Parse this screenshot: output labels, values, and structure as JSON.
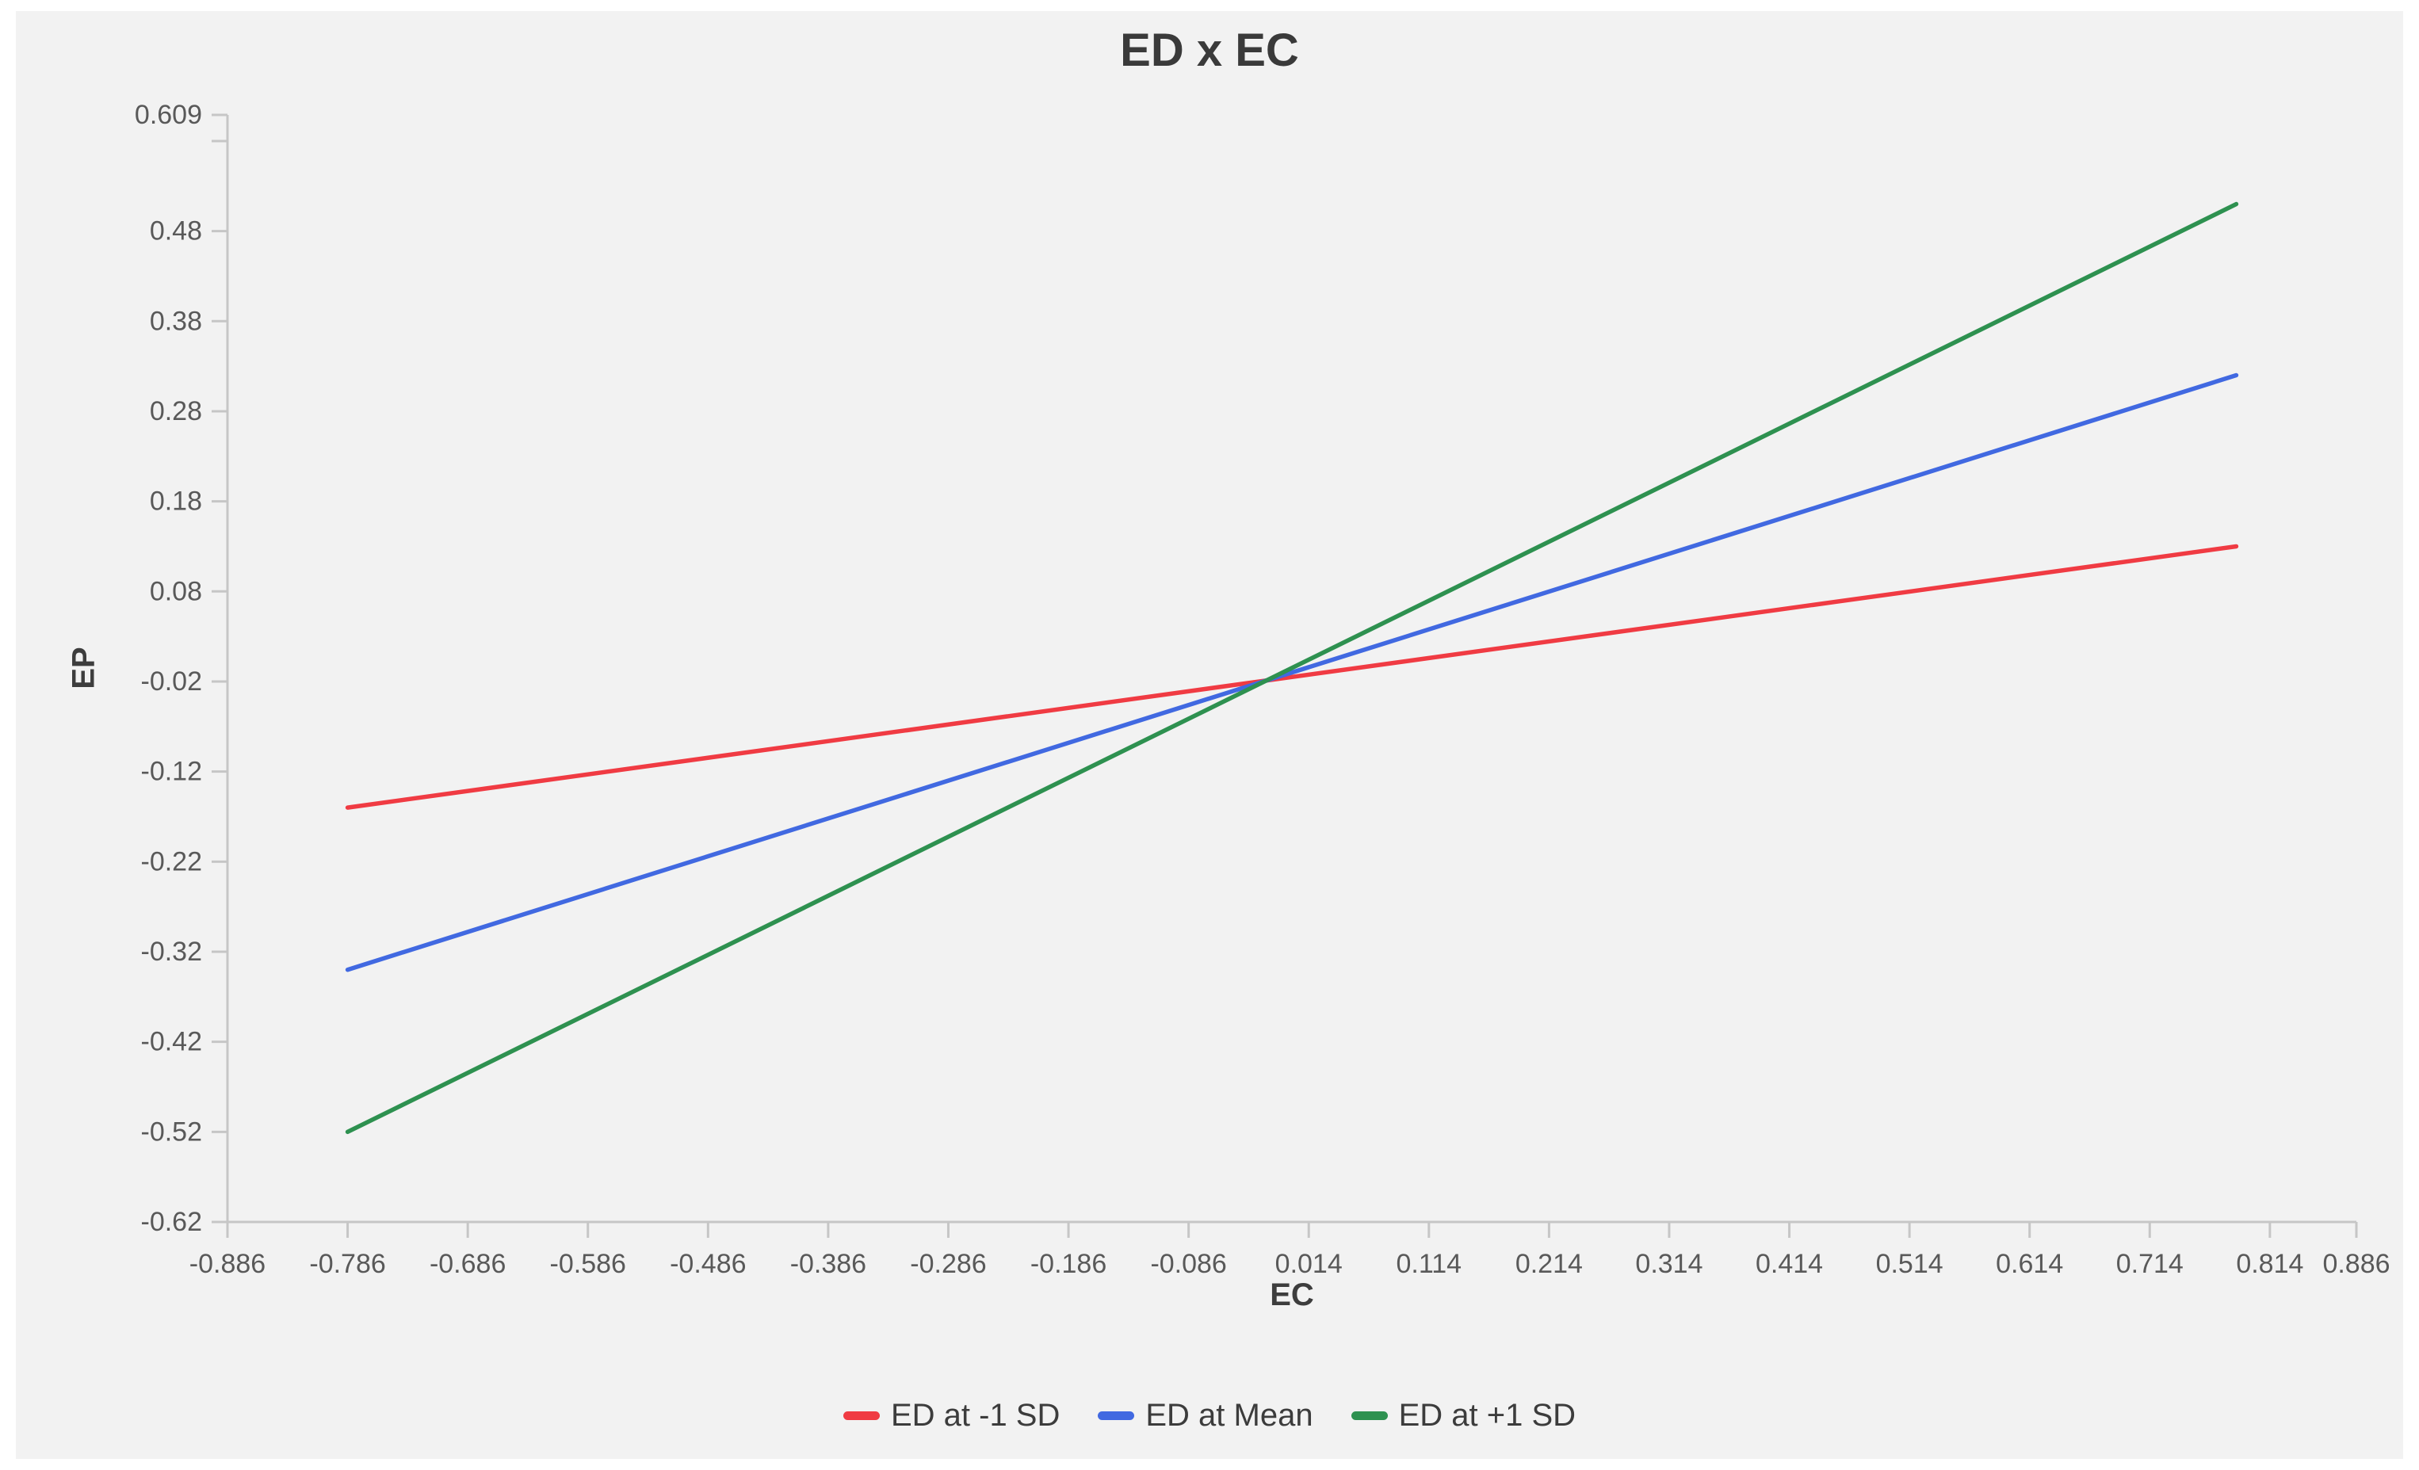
{
  "chart_data": {
    "type": "line",
    "title": "ED x EC",
    "xlabel": "EC",
    "ylabel": "EP",
    "xlim": [
      -0.886,
      0.886
    ],
    "ylim": [
      -0.62,
      0.609
    ],
    "grid": false,
    "legend_position": "bottom",
    "x_ticks": [
      {
        "value": -0.886,
        "label": "-0.886"
      },
      {
        "value": -0.786,
        "label": "-0.786"
      },
      {
        "value": -0.686,
        "label": "-0.686"
      },
      {
        "value": -0.586,
        "label": "-0.586"
      },
      {
        "value": -0.486,
        "label": "-0.486"
      },
      {
        "value": -0.386,
        "label": "-0.386"
      },
      {
        "value": -0.286,
        "label": "-0.286"
      },
      {
        "value": -0.186,
        "label": "-0.186"
      },
      {
        "value": -0.086,
        "label": "-0.086"
      },
      {
        "value": 0.014,
        "label": "0.014"
      },
      {
        "value": 0.114,
        "label": "0.114"
      },
      {
        "value": 0.214,
        "label": "0.214"
      },
      {
        "value": 0.314,
        "label": "0.314"
      },
      {
        "value": 0.414,
        "label": "0.414"
      },
      {
        "value": 0.514,
        "label": "0.514"
      },
      {
        "value": 0.614,
        "label": "0.614"
      },
      {
        "value": 0.714,
        "label": "0.714"
      },
      {
        "value": 0.814,
        "label": "0.814"
      },
      {
        "value": 0.886,
        "label": "0.886"
      }
    ],
    "y_ticks": [
      {
        "value": 0.609,
        "label": "0.609"
      },
      {
        "value": 0.58,
        "label": ""
      },
      {
        "value": 0.48,
        "label": "0.48"
      },
      {
        "value": 0.38,
        "label": "0.38"
      },
      {
        "value": 0.28,
        "label": "0.28"
      },
      {
        "value": 0.18,
        "label": "0.18"
      },
      {
        "value": 0.08,
        "label": "0.08"
      },
      {
        "value": -0.02,
        "label": "-0.02"
      },
      {
        "value": -0.12,
        "label": "-0.12"
      },
      {
        "value": -0.22,
        "label": "-0.22"
      },
      {
        "value": -0.32,
        "label": "-0.32"
      },
      {
        "value": -0.42,
        "label": "-0.42"
      },
      {
        "value": -0.52,
        "label": "-0.52"
      },
      {
        "value": -0.62,
        "label": "-0.62"
      }
    ],
    "series": [
      {
        "name": "ED at -1 SD",
        "color": "#f03b43",
        "x": [
          -0.786,
          0.786
        ],
        "y": [
          -0.16,
          0.13
        ]
      },
      {
        "name": "ED at Mean",
        "color": "#4169e1",
        "x": [
          -0.786,
          0.786
        ],
        "y": [
          -0.34,
          0.32
        ]
      },
      {
        "name": "ED at +1 SD",
        "color": "#2e9150",
        "x": [
          -0.786,
          0.786
        ],
        "y": [
          -0.52,
          0.51
        ]
      }
    ]
  },
  "colors": {
    "panel_background": "#f2f2f2",
    "axis": "#c6c6c6",
    "tick_label": "#595959",
    "title_text": "#3a3a3a",
    "legend_text": "#3c3c3c"
  }
}
